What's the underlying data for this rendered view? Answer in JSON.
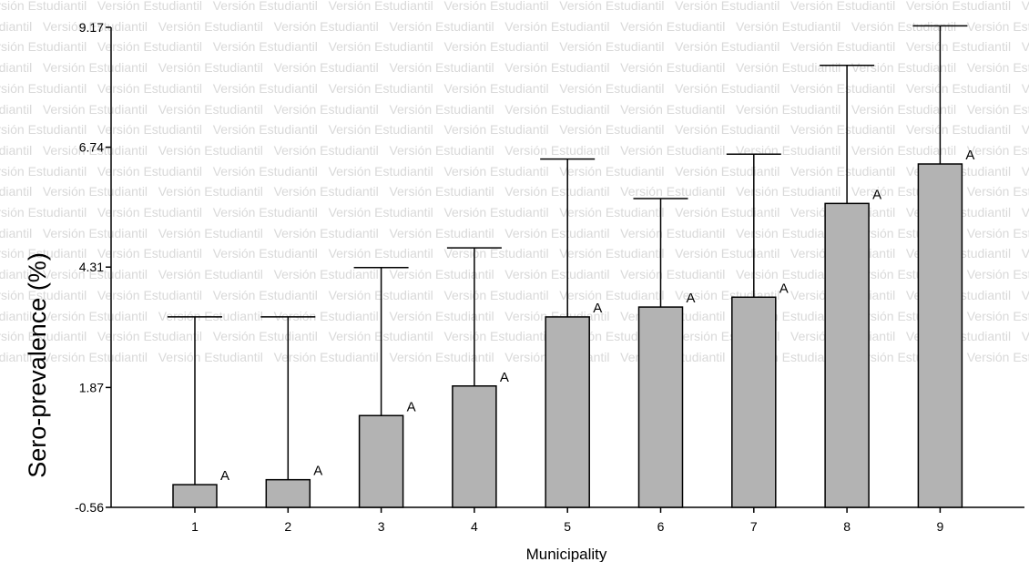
{
  "watermark": {
    "text": "Versión Estudiantil"
  },
  "chart_data": {
    "type": "bar",
    "title": "",
    "xlabel": "Municipality",
    "ylabel": "Sero-prevalence (%)",
    "categories": [
      "1",
      "2",
      "3",
      "4",
      "5",
      "6",
      "7",
      "8",
      "9"
    ],
    "values": [
      -0.1,
      0.0,
      1.3,
      1.9,
      3.3,
      3.5,
      3.7,
      5.6,
      6.4
    ],
    "error_upper": [
      3.3,
      3.3,
      4.3,
      4.7,
      6.5,
      5.7,
      6.6,
      8.4,
      9.2
    ],
    "annotations": [
      "A",
      "A",
      "A",
      "A",
      "A",
      "A",
      "A",
      "A",
      "A"
    ],
    "yticks": [
      "9.17",
      "6.74",
      "4.31",
      "1.87",
      "-0.56"
    ],
    "ylim": [
      -0.56,
      9.17
    ],
    "grid": false,
    "bar_color": "#b3b3b3",
    "line_color": "#000000"
  }
}
